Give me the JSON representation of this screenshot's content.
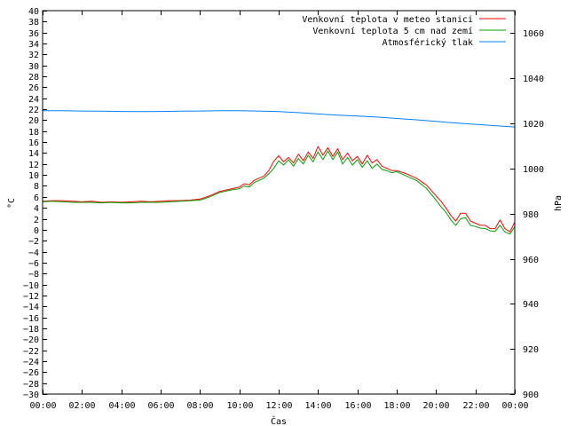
{
  "chart_data": {
    "type": "line",
    "title": "",
    "xlabel": "Čas",
    "ylabel": "°C",
    "y2label": "hPa",
    "xlim": [
      0,
      24
    ],
    "ylim": [
      -30,
      40
    ],
    "y2lim": [
      900,
      1070
    ],
    "x_tick_labels": [
      "00:00",
      "02:00",
      "04:00",
      "06:00",
      "08:00",
      "10:00",
      "12:00",
      "14:00",
      "16:00",
      "18:00",
      "20:00",
      "22:00",
      "00:00"
    ],
    "y_ticks": [
      40,
      38,
      36,
      34,
      32,
      30,
      28,
      26,
      24,
      22,
      20,
      18,
      16,
      14,
      12,
      10,
      8,
      6,
      4,
      2,
      0,
      -2,
      -4,
      -6,
      -8,
      -10,
      -12,
      -14,
      -16,
      -18,
      -20,
      -22,
      -24,
      -26,
      -28,
      -30
    ],
    "y2_ticks": [
      900,
      920,
      940,
      960,
      980,
      1000,
      1020,
      1040,
      1060
    ],
    "grid": false,
    "legend": "top-right",
    "series": [
      {
        "name": "Venkovní teplota v meteo stanici",
        "axis": "y",
        "color": "#ff0000",
        "x": [
          0,
          0.5,
          1,
          1.5,
          2,
          2.5,
          3,
          3.5,
          4,
          4.5,
          5,
          5.5,
          6,
          6.5,
          7,
          7.5,
          8,
          8.5,
          9,
          9.5,
          10,
          10.25,
          10.5,
          10.75,
          11,
          11.25,
          11.5,
          11.75,
          12,
          12.25,
          12.5,
          12.75,
          13,
          13.25,
          13.5,
          13.75,
          14,
          14.25,
          14.5,
          14.75,
          15,
          15.25,
          15.5,
          15.75,
          16,
          16.25,
          16.5,
          16.75,
          17,
          17.25,
          17.5,
          17.75,
          18,
          18.5,
          19,
          19.5,
          20,
          20.25,
          20.5,
          20.75,
          21,
          21.25,
          21.5,
          21.75,
          22,
          22.25,
          22.5,
          22.75,
          23,
          23.25,
          23.5,
          23.75,
          24
        ],
        "values": [
          5.2,
          5.3,
          5.3,
          5.2,
          5.1,
          5.2,
          5.0,
          5.1,
          5.0,
          5.1,
          5.2,
          5.1,
          5.2,
          5.3,
          5.3,
          5.4,
          5.6,
          6.2,
          7.0,
          7.4,
          7.8,
          8.4,
          8.2,
          9.0,
          9.4,
          9.8,
          10.8,
          12.5,
          13.5,
          12.4,
          13.2,
          12.2,
          13.8,
          12.6,
          14.2,
          13.0,
          15.2,
          13.6,
          15.0,
          13.4,
          14.8,
          12.8,
          14.0,
          12.6,
          13.4,
          12.0,
          13.6,
          12.2,
          12.8,
          11.6,
          11.2,
          10.8,
          10.8,
          10.2,
          9.4,
          8.2,
          6.2,
          5.2,
          4.0,
          2.6,
          1.6,
          3.0,
          3.0,
          1.6,
          1.2,
          0.8,
          0.8,
          0.2,
          0.2,
          1.8,
          0.2,
          -0.4,
          1.4
        ]
      },
      {
        "name": "Venkovní teplota 5 cm nad zemí",
        "axis": "y",
        "color": "#00a000",
        "x": [
          0,
          0.5,
          1,
          1.5,
          2,
          2.5,
          3,
          3.5,
          4,
          4.5,
          5,
          5.5,
          6,
          6.5,
          7,
          7.5,
          8,
          8.5,
          9,
          9.5,
          10,
          10.25,
          10.5,
          10.75,
          11,
          11.25,
          11.5,
          11.75,
          12,
          12.25,
          12.5,
          12.75,
          13,
          13.25,
          13.5,
          13.75,
          14,
          14.25,
          14.5,
          14.75,
          15,
          15.25,
          15.5,
          15.75,
          16,
          16.25,
          16.5,
          16.75,
          17,
          17.25,
          17.5,
          17.75,
          18,
          18.5,
          19,
          19.5,
          20,
          20.25,
          20.5,
          20.75,
          21,
          21.25,
          21.5,
          21.75,
          22,
          22.25,
          22.5,
          22.75,
          23,
          23.25,
          23.5,
          23.75,
          24
        ],
        "values": [
          5.1,
          5.2,
          5.1,
          5.0,
          5.0,
          5.0,
          4.9,
          5.0,
          4.9,
          4.9,
          5.0,
          5.0,
          5.0,
          5.1,
          5.2,
          5.3,
          5.4,
          6.0,
          6.8,
          7.2,
          7.5,
          8.0,
          7.8,
          8.6,
          9.0,
          9.4,
          10.2,
          11.2,
          12.6,
          11.8,
          12.8,
          11.6,
          13.0,
          12.0,
          13.6,
          12.4,
          14.2,
          12.8,
          14.4,
          12.8,
          14.2,
          12.0,
          13.2,
          11.8,
          12.8,
          11.4,
          12.6,
          11.2,
          12.0,
          11.0,
          10.8,
          10.4,
          10.6,
          9.8,
          9.0,
          7.6,
          5.4,
          4.2,
          3.2,
          1.8,
          0.8,
          2.0,
          2.2,
          0.8,
          0.6,
          0.3,
          0.2,
          -0.2,
          -0.3,
          0.8,
          -0.4,
          -0.8,
          0.6
        ]
      },
      {
        "name": "Atmosférický tlak",
        "axis": "y2",
        "color": "#0080ff",
        "x": [
          0,
          1,
          2,
          3,
          4,
          5,
          6,
          7,
          8,
          9,
          10,
          11,
          12,
          13,
          14,
          15,
          16,
          17,
          18,
          19,
          20,
          21,
          22,
          23,
          24
        ],
        "values": [
          1025.6,
          1025.6,
          1025.5,
          1025.4,
          1025.3,
          1025.2,
          1025.3,
          1025.4,
          1025.5,
          1025.6,
          1025.6,
          1025.5,
          1025.2,
          1024.8,
          1024.2,
          1023.7,
          1023.3,
          1022.8,
          1022.2,
          1021.6,
          1020.9,
          1020.2,
          1019.6,
          1019.0,
          1018.4
        ]
      }
    ]
  }
}
